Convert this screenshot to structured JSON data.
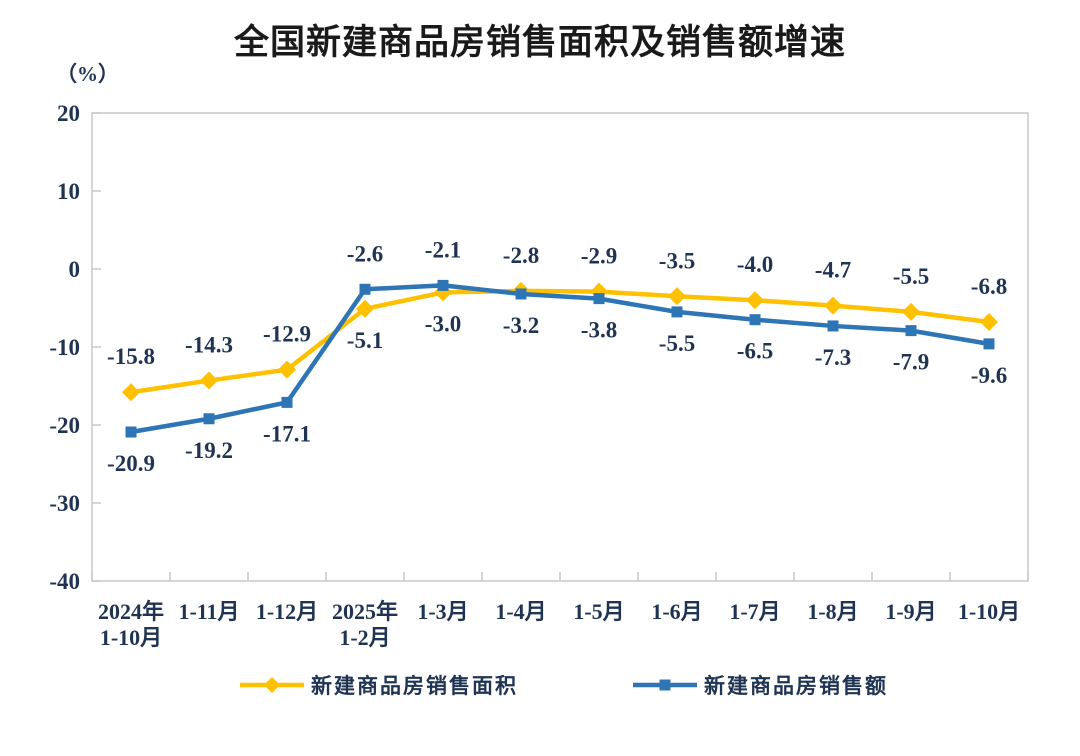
{
  "page": {
    "background": "#ffffff"
  },
  "chart_data": {
    "type": "line",
    "title": "全国新建商品房销售面积及销售额增速",
    "unit_label": "（%）",
    "categories": [
      "2024年\n1-10月",
      "1-11月",
      "1-12月",
      "2025年\n1-2月",
      "1-3月",
      "1-4月",
      "1-5月",
      "1-6月",
      "1-7月",
      "1-8月",
      "1-9月",
      "1-10月"
    ],
    "series": [
      {
        "name": "新建商品房销售面积",
        "color": "#FFC000",
        "marker": "diamond",
        "values": [
          -15.8,
          -14.3,
          -12.9,
          -5.1,
          -3.0,
          -2.8,
          -2.9,
          -3.5,
          -4.0,
          -4.7,
          -5.5,
          -6.8
        ]
      },
      {
        "name": "新建商品房销售额",
        "color": "#2E75B6",
        "marker": "square",
        "values": [
          -20.9,
          -19.2,
          -17.1,
          -2.6,
          -2.1,
          -3.2,
          -3.8,
          -5.5,
          -6.5,
          -7.3,
          -7.9,
          -9.6
        ]
      }
    ],
    "ylim": [
      -40,
      20
    ],
    "yticks": [
      20,
      10,
      0,
      -10,
      -20,
      -30,
      -40
    ],
    "grid": false,
    "legend_position": "bottom",
    "data_labels": true,
    "colors": {
      "label_text": "#1f3352",
      "axis_line": "#c9c9c9",
      "title_text": "#1a1a1a"
    }
  }
}
